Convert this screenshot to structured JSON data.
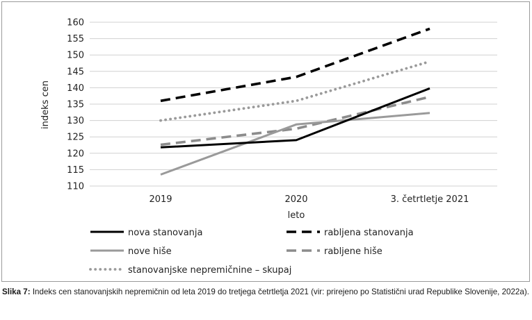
{
  "chart_data": {
    "type": "line",
    "categories": [
      "2019",
      "2020",
      "3. četrtletje 2021"
    ],
    "ylim": [
      110,
      160
    ],
    "yticks": [
      110,
      115,
      120,
      125,
      130,
      135,
      140,
      145,
      150,
      155,
      160
    ],
    "ylabel": "indeks cen",
    "xlabel": "leto",
    "grid": true,
    "legend_position": "bottom",
    "series": [
      {
        "name": "nova stanovanja",
        "values": [
          121.8,
          124.0,
          139.8
        ],
        "color": "#000000",
        "style": "solid"
      },
      {
        "name": "rabljena stanovanja",
        "values": [
          136.0,
          143.3,
          158.0
        ],
        "color": "#000000",
        "style": "dashed"
      },
      {
        "name": "nove hiše",
        "values": [
          113.5,
          128.8,
          132.3
        ],
        "color": "#9a9a9a",
        "style": "solid"
      },
      {
        "name": "rabljene hiše",
        "values": [
          122.6,
          127.5,
          137.2
        ],
        "color": "#8c8c8c",
        "style": "dashed"
      },
      {
        "name": "stanovanjske nepremičnine – skupaj",
        "values": [
          130.0,
          136.0,
          148.0
        ],
        "color": "#9a9a9a",
        "style": "dotted"
      }
    ]
  },
  "caption": {
    "label": "Slika 7:",
    "text": " Indeks cen stanovanjskih nepremičnin od leta 2019 do tretjega četrtletja 2021 (vir: prirejeno po Statistični urad Republike Slovenije, 2022a)."
  }
}
